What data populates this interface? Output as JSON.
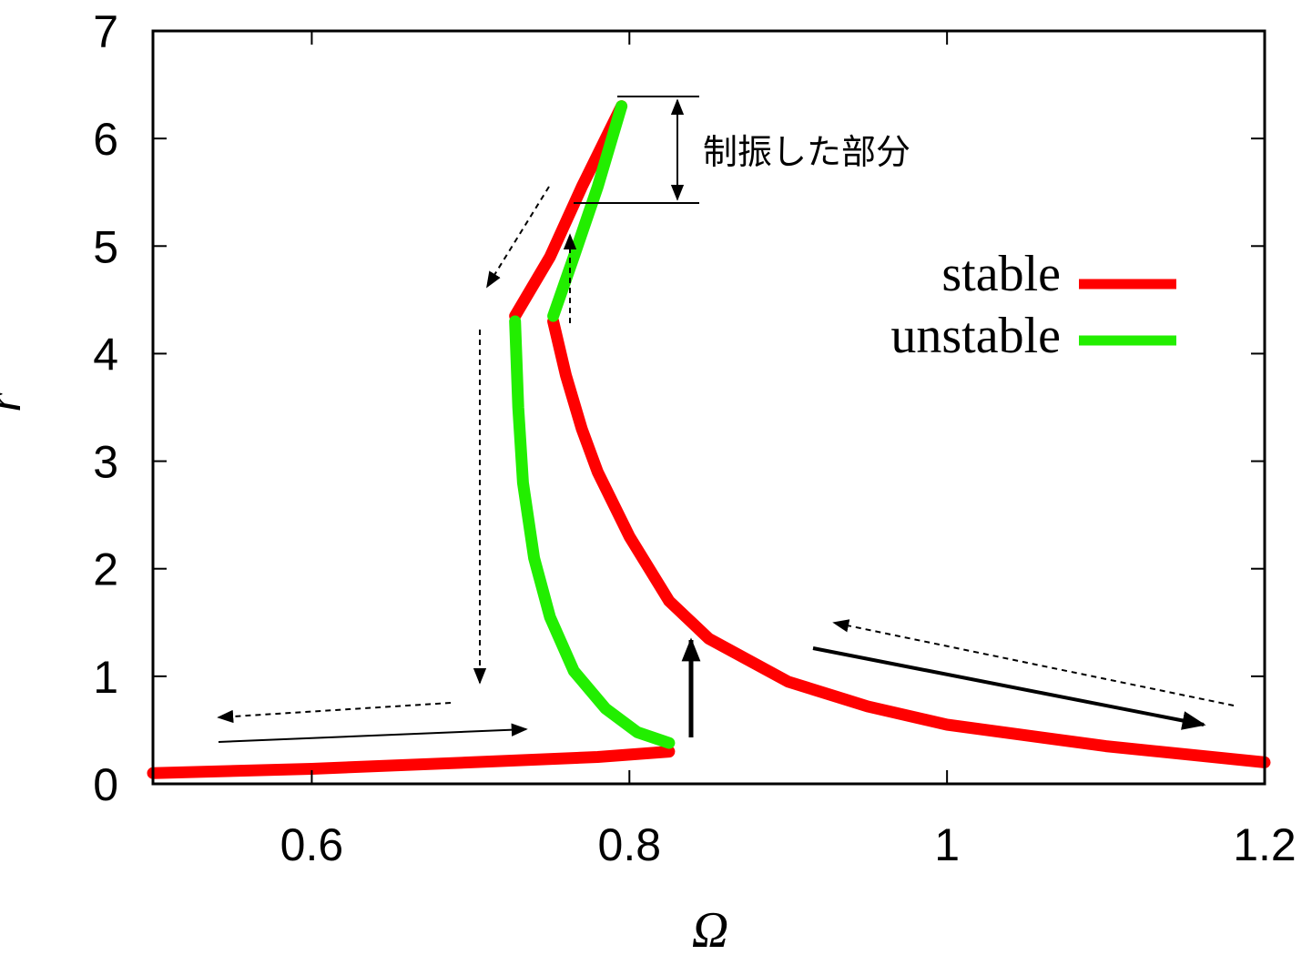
{
  "chart_data": {
    "type": "line",
    "xlabel": "Ω",
    "ylabel": "r",
    "xlim": [
      0.5,
      1.2
    ],
    "ylim": [
      0,
      7
    ],
    "x_ticks": [
      "0.6",
      "0.8",
      "1",
      "1.2"
    ],
    "y_ticks": [
      "0",
      "1",
      "2",
      "3",
      "4",
      "5",
      "6",
      "7"
    ],
    "grid": false,
    "legend_position": "right",
    "annotation": "制振した部分",
    "series": [
      {
        "name": "stable",
        "color": "#ff0000",
        "segments": [
          {
            "x": [
              0.5,
              0.6,
              0.7,
              0.78,
              0.825
            ],
            "y": [
              0.1,
              0.14,
              0.2,
              0.25,
              0.3
            ]
          },
          {
            "x": [
              0.752,
              0.76,
              0.77,
              0.78,
              0.8,
              0.825,
              0.85,
              0.9,
              0.95,
              1.0,
              1.1,
              1.2
            ],
            "y": [
              4.3,
              3.8,
              3.3,
              2.9,
              2.3,
              1.7,
              1.35,
              0.95,
              0.72,
              0.55,
              0.35,
              0.2
            ]
          },
          {
            "x": [
              0.728,
              0.75,
              0.77,
              0.795
            ],
            "y": [
              4.35,
              4.9,
              5.55,
              6.3
            ]
          }
        ]
      },
      {
        "name": "unstable",
        "color": "#22ee00",
        "segments": [
          {
            "x": [
              0.728,
              0.73,
              0.733,
              0.74,
              0.75,
              0.765,
              0.785,
              0.805,
              0.825
            ],
            "y": [
              4.3,
              3.5,
              2.8,
              2.1,
              1.55,
              1.05,
              0.7,
              0.48,
              0.38
            ]
          },
          {
            "x": [
              0.752,
              0.765,
              0.78,
              0.795
            ],
            "y": [
              4.35,
              4.9,
              5.55,
              6.3
            ]
          }
        ]
      }
    ]
  }
}
